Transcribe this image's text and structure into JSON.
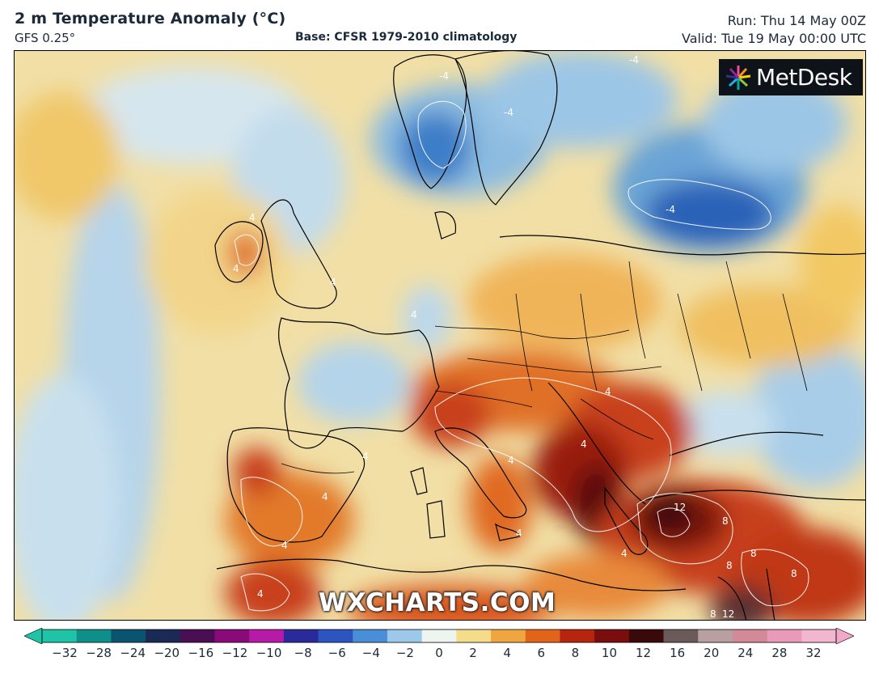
{
  "header": {
    "title": "2 m Temperature Anomaly (°C)",
    "model": "GFS 0.25°",
    "base": "Base: CFSR 1979-2010 climatology",
    "run": "Run: Thu 14 May 00Z",
    "valid": "Valid: Tue 19 May 00:00 UTC"
  },
  "logo": {
    "text": "MetDesk"
  },
  "watermark": "WXCHARTS.COM",
  "colorbar": {
    "ticks": [
      "−32",
      "−28",
      "−24",
      "−20",
      "−16",
      "−12",
      "−10",
      "−8",
      "−6",
      "−4",
      "−2",
      "0",
      "2",
      "4",
      "6",
      "8",
      "10",
      "12",
      "16",
      "20",
      "24",
      "28",
      "32"
    ],
    "colors": [
      "#1fc3a6",
      "#0e8f8a",
      "#0b5470",
      "#1a2a55",
      "#4a0e55",
      "#8a0a7a",
      "#b81aa8",
      "#2a2a9a",
      "#2c55c0",
      "#4a8ed8",
      "#9cc8ea",
      "#eef4f0",
      "#f5dc8a",
      "#f0a640",
      "#e2641a",
      "#b8250e",
      "#7a0e0e",
      "#3a0a0a",
      "#6a5a5a",
      "#b8a0a0",
      "#d28a98",
      "#e89ab8",
      "#f2b6cf"
    ],
    "under_color": "#1fc3a6",
    "over_color": "#f2a8c8"
  },
  "map": {
    "contour_labels": [
      "4",
      "4",
      "4",
      "4",
      "4",
      "4",
      "4",
      "4",
      "4",
      "4",
      "4",
      "4",
      "4",
      "8",
      "8",
      "8",
      "8",
      "8",
      "12",
      "12",
      "-4",
      "-4",
      "-4",
      "-4"
    ],
    "colors": {
      "sea_neutral": "#f0e0a8",
      "warm_light": "#f2c864",
      "warm_mid": "#ec9a3a",
      "warm_strong": "#d8561a",
      "hot": "#a8200e",
      "very_hot": "#4a0a0a",
      "cool_light": "#c8e0ee",
      "cool_mid": "#7eb4dc",
      "cool_strong": "#2e6cc0"
    }
  }
}
